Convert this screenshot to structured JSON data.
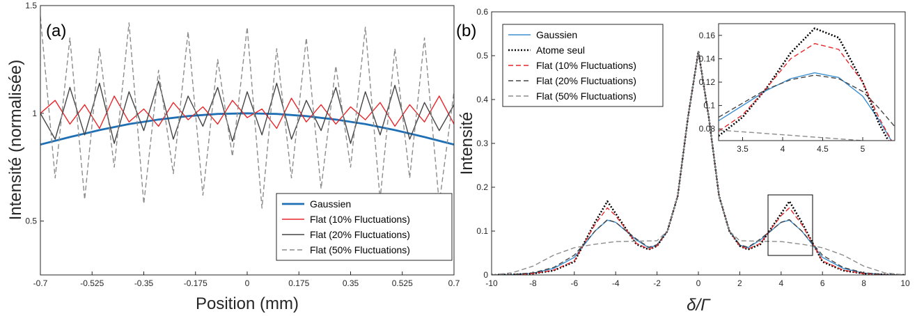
{
  "panels": {
    "a": "(a)",
    "b": "(b)"
  },
  "colors": {
    "gaussien": "#1f6fb5",
    "gaussien_b": "#3b8fd0",
    "flat10": "#e8262a",
    "flat20": "#444444",
    "flat50": "#8c8c8c",
    "atome": "#000000"
  },
  "chart_data": [
    {
      "id": "a",
      "type": "line",
      "xlabel": "Position (mm)",
      "ylabel": "Intensité (normalisée)",
      "xlim": [
        -0.7,
        0.7
      ],
      "ylim": [
        0.25,
        1.5
      ],
      "xticks": [
        -0.7,
        -0.525,
        -0.35,
        -0.175,
        0,
        0.175,
        0.35,
        0.525,
        0.7
      ],
      "xtick_labels": [
        "-0.7",
        "-0.525",
        "-0.35",
        "-0.175",
        "0",
        "0.175",
        "0.35",
        "0.525",
        "0.7"
      ],
      "yticks": [
        0.5,
        1,
        1.5
      ],
      "ytick_labels": [
        "0.5",
        "1",
        "1.5"
      ],
      "legend_position": "bottom-right",
      "series": [
        {
          "name": "Gaussien",
          "style": "solid-thick",
          "color": "#1f6fb5",
          "x": [
            -0.7,
            -0.6,
            -0.5,
            -0.4,
            -0.3,
            -0.2,
            -0.1,
            0,
            0.1,
            0.2,
            0.3,
            0.4,
            0.5,
            0.6,
            0.7
          ],
          "y": [
            0.855,
            0.89,
            0.922,
            0.95,
            0.971,
            0.987,
            0.997,
            1.0,
            0.997,
            0.987,
            0.971,
            0.95,
            0.922,
            0.89,
            0.855
          ]
        },
        {
          "name": "Flat (10% Fluctuations)",
          "style": "solid",
          "color": "#e8262a",
          "x": [
            -0.7,
            -0.65,
            -0.6,
            -0.55,
            -0.5,
            -0.45,
            -0.4,
            -0.35,
            -0.3,
            -0.25,
            -0.2,
            -0.15,
            -0.1,
            -0.05,
            0,
            0.05,
            0.1,
            0.15,
            0.2,
            0.25,
            0.3,
            0.35,
            0.4,
            0.45,
            0.5,
            0.55,
            0.6,
            0.65,
            0.7
          ],
          "y": [
            1.0,
            1.06,
            0.95,
            1.04,
            0.93,
            1.08,
            0.96,
            1.02,
            0.94,
            1.05,
            0.97,
            1.03,
            0.95,
            1.06,
            0.98,
            1.02,
            0.93,
            1.07,
            0.96,
            1.04,
            0.95,
            1.03,
            0.97,
            1.05,
            0.94,
            1.04,
            0.96,
            1.08,
            0.95
          ]
        },
        {
          "name": "Flat (20% Fluctuations)",
          "style": "solid",
          "color": "#444444",
          "x": [
            -0.7,
            -0.65,
            -0.6,
            -0.55,
            -0.5,
            -0.45,
            -0.4,
            -0.35,
            -0.3,
            -0.25,
            -0.2,
            -0.15,
            -0.1,
            -0.05,
            0,
            0.05,
            0.1,
            0.15,
            0.2,
            0.25,
            0.3,
            0.35,
            0.4,
            0.45,
            0.5,
            0.55,
            0.6,
            0.65,
            0.7
          ],
          "y": [
            1.0,
            0.88,
            1.12,
            0.9,
            1.14,
            0.86,
            1.1,
            0.92,
            1.15,
            0.88,
            1.08,
            0.94,
            1.12,
            0.87,
            1.1,
            0.9,
            1.14,
            0.88,
            1.06,
            0.92,
            1.12,
            0.86,
            1.1,
            0.9,
            1.13,
            0.88,
            1.05,
            0.92,
            1.04
          ]
        },
        {
          "name": "Flat (50% Fluctuations)",
          "style": "dashed",
          "color": "#8c8c8c",
          "x": [
            -0.7,
            -0.65,
            -0.6,
            -0.55,
            -0.5,
            -0.45,
            -0.4,
            -0.35,
            -0.3,
            -0.25,
            -0.2,
            -0.15,
            -0.1,
            -0.05,
            0,
            0.05,
            0.1,
            0.15,
            0.2,
            0.25,
            0.3,
            0.35,
            0.4,
            0.45,
            0.5,
            0.55,
            0.6,
            0.65,
            0.7
          ],
          "y": [
            1.45,
            0.7,
            1.35,
            0.6,
            1.3,
            0.75,
            1.42,
            0.58,
            1.2,
            0.72,
            1.38,
            0.62,
            1.25,
            0.8,
            1.4,
            0.56,
            1.3,
            0.7,
            1.35,
            0.65,
            1.22,
            0.75,
            1.4,
            0.6,
            1.3,
            0.7,
            1.35,
            0.58,
            1.1
          ]
        }
      ]
    },
    {
      "id": "b",
      "type": "line",
      "xlabel": "δ/Γ",
      "ylabel": "Intensité",
      "xlim": [
        -10,
        10
      ],
      "ylim": [
        0,
        0.6
      ],
      "xticks": [
        -10,
        -8,
        -6,
        -4,
        -2,
        0,
        2,
        4,
        6,
        8,
        10
      ],
      "xtick_labels": [
        "-10",
        "-8",
        "-6",
        "-4",
        "-2",
        "0",
        "2",
        "4",
        "6",
        "8",
        "10"
      ],
      "yticks": [
        0,
        0.1,
        0.2,
        0.3,
        0.4,
        0.5,
        0.6
      ],
      "ytick_labels": [
        "0",
        "0.1",
        "0.2",
        "0.3",
        "0.4",
        "0.5",
        "0.6"
      ],
      "legend_position": "top-left",
      "series": [
        {
          "name": "Gaussien",
          "style": "solid",
          "color": "#3b8fd0",
          "x": [
            -10,
            -9,
            -8,
            -7,
            -6,
            -5,
            -4.4,
            -4,
            -3,
            -2.4,
            -2,
            -1.5,
            -1,
            -0.5,
            0,
            0.5,
            1,
            1.5,
            2,
            2.4,
            3,
            4,
            4.4,
            5,
            6,
            7,
            8,
            9,
            10
          ],
          "y": [
            0,
            0.001,
            0.004,
            0.015,
            0.04,
            0.1,
            0.125,
            0.12,
            0.08,
            0.062,
            0.068,
            0.1,
            0.18,
            0.36,
            0.51,
            0.36,
            0.18,
            0.1,
            0.068,
            0.062,
            0.08,
            0.12,
            0.125,
            0.1,
            0.04,
            0.015,
            0.004,
            0.001,
            0
          ]
        },
        {
          "name": "Atome seul",
          "style": "dotted",
          "color": "#000000",
          "x": [
            -10,
            -9,
            -8,
            -7,
            -6,
            -5,
            -4.4,
            -4,
            -3,
            -2.4,
            -2,
            -1.5,
            -1,
            -0.5,
            0,
            0.5,
            1,
            1.5,
            2,
            2.4,
            3,
            4,
            4.4,
            5,
            6,
            7,
            8,
            9,
            10
          ],
          "y": [
            0,
            0.001,
            0.003,
            0.01,
            0.03,
            0.12,
            0.168,
            0.14,
            0.07,
            0.058,
            0.066,
            0.1,
            0.18,
            0.36,
            0.51,
            0.36,
            0.18,
            0.1,
            0.066,
            0.058,
            0.07,
            0.14,
            0.168,
            0.12,
            0.03,
            0.01,
            0.003,
            0.001,
            0
          ]
        },
        {
          "name": "Flat (10% Fluctuations)",
          "style": "dashed",
          "color": "#e8262a",
          "x": [
            -10,
            -9,
            -8,
            -7,
            -6,
            -5,
            -4.4,
            -4,
            -3,
            -2.4,
            -2,
            -1.5,
            -1,
            -0.5,
            0,
            0.5,
            1,
            1.5,
            2,
            2.4,
            3,
            4,
            4.4,
            5,
            6,
            7,
            8,
            9,
            10
          ],
          "y": [
            0,
            0.001,
            0.003,
            0.011,
            0.032,
            0.115,
            0.153,
            0.135,
            0.072,
            0.059,
            0.066,
            0.1,
            0.18,
            0.36,
            0.51,
            0.36,
            0.18,
            0.1,
            0.066,
            0.059,
            0.072,
            0.135,
            0.153,
            0.115,
            0.032,
            0.011,
            0.003,
            0.001,
            0
          ]
        },
        {
          "name": "Flat (20% Fluctuations)",
          "style": "dashed",
          "color": "#444444",
          "x": [
            -10,
            -9,
            -8,
            -7,
            -6,
            -5,
            -4.4,
            -4,
            -3,
            -2.4,
            -2,
            -1.5,
            -1,
            -0.5,
            0,
            0.5,
            1,
            1.5,
            2,
            2.4,
            3,
            4,
            4.4,
            5,
            6,
            7,
            8,
            9,
            10
          ],
          "y": [
            0,
            0.001,
            0.005,
            0.017,
            0.045,
            0.1,
            0.126,
            0.12,
            0.082,
            0.063,
            0.069,
            0.1,
            0.18,
            0.36,
            0.51,
            0.36,
            0.18,
            0.1,
            0.069,
            0.063,
            0.082,
            0.12,
            0.126,
            0.1,
            0.045,
            0.017,
            0.005,
            0.001,
            0
          ]
        },
        {
          "name": "Flat (50% Fluctuations)",
          "style": "dashed",
          "color": "#8c8c8c",
          "x": [
            -10,
            -9,
            -8,
            -7,
            -6,
            -5,
            -4,
            -3,
            -2,
            -1.5,
            -1,
            -0.5,
            0,
            0.5,
            1,
            1.5,
            2,
            3,
            4,
            5,
            6,
            7,
            8,
            9,
            10
          ],
          "y": [
            0,
            0.005,
            0.02,
            0.045,
            0.062,
            0.07,
            0.076,
            0.077,
            0.078,
            0.1,
            0.18,
            0.36,
            0.51,
            0.36,
            0.18,
            0.1,
            0.078,
            0.077,
            0.076,
            0.07,
            0.062,
            0.045,
            0.02,
            0.005,
            0
          ]
        }
      ]
    },
    {
      "id": "b-inset",
      "type": "line",
      "xlim": [
        3.2,
        5.4
      ],
      "ylim": [
        0.07,
        0.17
      ],
      "xticks": [
        3.5,
        4,
        4.5,
        5
      ],
      "xtick_labels": [
        "3.5",
        "4",
        "4.5",
        "5"
      ],
      "yticks": [
        0.08,
        0.1,
        0.12,
        0.14,
        0.16
      ],
      "ytick_labels": [
        "0.08",
        "0.1",
        "0.12",
        "0.14",
        "0.16"
      ],
      "series": [
        {
          "name": "Gaussien",
          "style": "solid",
          "color": "#3b8fd0",
          "x": [
            3.2,
            3.5,
            3.8,
            4.1,
            4.4,
            4.7,
            5.0,
            5.2,
            5.4
          ],
          "y": [
            0.087,
            0.1,
            0.113,
            0.123,
            0.128,
            0.124,
            0.108,
            0.088,
            0.065
          ]
        },
        {
          "name": "Atome seul",
          "style": "dotted",
          "color": "#000000",
          "x": [
            3.2,
            3.5,
            3.8,
            4.1,
            4.4,
            4.7,
            5.0,
            5.2,
            5.4
          ],
          "y": [
            0.074,
            0.09,
            0.115,
            0.145,
            0.166,
            0.158,
            0.12,
            0.085,
            0.06
          ]
        },
        {
          "name": "Flat (10% Fluctuations)",
          "style": "dashed",
          "color": "#e8262a",
          "x": [
            3.2,
            3.5,
            3.8,
            4.1,
            4.4,
            4.7,
            5.0,
            5.2,
            5.4
          ],
          "y": [
            0.078,
            0.092,
            0.115,
            0.14,
            0.153,
            0.148,
            0.12,
            0.09,
            0.065
          ]
        },
        {
          "name": "Flat (20% Fluctuations)",
          "style": "dashed",
          "color": "#444444",
          "x": [
            3.2,
            3.5,
            3.8,
            4.1,
            4.4,
            4.7,
            5.0,
            5.2,
            5.4
          ],
          "y": [
            0.09,
            0.102,
            0.114,
            0.122,
            0.126,
            0.123,
            0.112,
            0.098,
            0.082
          ]
        },
        {
          "name": "Flat (50% Fluctuations)",
          "style": "dashed",
          "color": "#8c8c8c",
          "x": [
            3.2,
            3.6,
            4.0,
            4.4,
            4.8,
            5.2,
            5.4
          ],
          "y": [
            0.079,
            0.077,
            0.075,
            0.073,
            0.071,
            0.069,
            0.068
          ]
        }
      ]
    }
  ]
}
